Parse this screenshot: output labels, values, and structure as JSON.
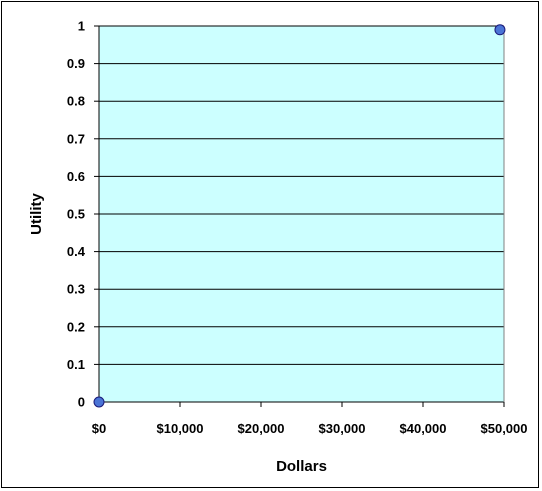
{
  "chart_data": {
    "type": "scatter",
    "xlabel": "Dollars",
    "ylabel": "Utility",
    "xlim": [
      0,
      50000
    ],
    "ylim": [
      0,
      1
    ],
    "x_ticks": [
      0,
      10000,
      20000,
      30000,
      40000,
      50000
    ],
    "x_tick_labels": [
      "$0",
      "$10,000",
      "$20,000",
      "$30,000",
      "$40,000",
      "$50,000"
    ],
    "y_ticks": [
      0,
      0.1,
      0.2,
      0.3,
      0.4,
      0.5,
      0.6,
      0.7,
      0.8,
      0.9,
      1
    ],
    "y_tick_labels": [
      "0",
      "0.1",
      "0.2",
      "0.3",
      "0.4",
      "0.5",
      "0.6",
      "0.7",
      "0.8",
      "0.9",
      "1"
    ],
    "grid": "horizontal",
    "series": [
      {
        "x": [
          0,
          49500
        ],
        "y": [
          0,
          0.99
        ]
      }
    ],
    "colors": {
      "plot_background": "#ccffff",
      "point_fill": "#4a74d6",
      "point_stroke": "#1a1a7a",
      "grid": "#000000",
      "axis": "#000000"
    }
  }
}
